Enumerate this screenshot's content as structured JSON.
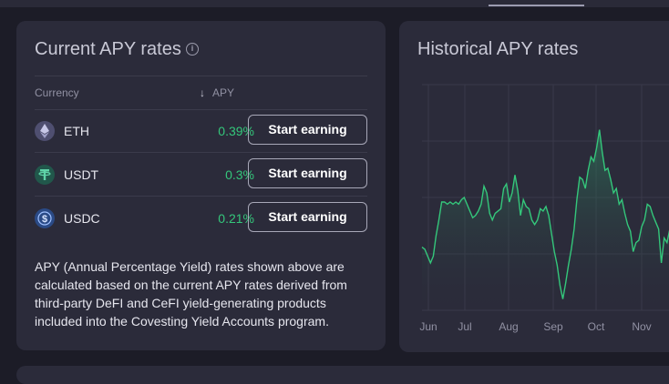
{
  "apy_card": {
    "title": "Current APY rates",
    "columns": {
      "currency": "Currency",
      "apy": "APY"
    },
    "rows": [
      {
        "symbol": "ETH",
        "apy": "0.39%",
        "button": "Start earning",
        "icon": "eth-icon"
      },
      {
        "symbol": "USDT",
        "apy": "0.3%",
        "button": "Start earning",
        "icon": "usdt-icon"
      },
      {
        "symbol": "USDC",
        "apy": "0.21%",
        "button": "Start earning",
        "icon": "usdc-icon"
      }
    ],
    "description": "APY (Annual Percentage Yield) rates shown above are calculated based on the current APY rates derived from third-party DeFI and CeFI yield-generating products included into the Covesting Yield Accounts program.",
    "colors": {
      "apy_green": "#34c77b",
      "card_bg": "#2b2b3a"
    }
  },
  "history_card": {
    "title": "Historical APY rates"
  },
  "chart_data": {
    "type": "area",
    "title": "Historical APY rates",
    "x_ticks": [
      "Jun",
      "Jul",
      "Aug",
      "Sep",
      "Oct",
      "Nov"
    ],
    "grid": true,
    "series": [
      {
        "color": "#34c77b",
        "values": [
          0.28,
          0.27,
          0.24,
          0.21,
          0.24,
          0.33,
          0.4,
          0.48,
          0.48,
          0.47,
          0.48,
          0.47,
          0.48,
          0.47,
          0.49,
          0.5,
          0.47,
          0.44,
          0.41,
          0.42,
          0.44,
          0.47,
          0.55,
          0.52,
          0.43,
          0.4,
          0.43,
          0.44,
          0.45,
          0.54,
          0.56,
          0.48,
          0.52,
          0.6,
          0.53,
          0.42,
          0.49,
          0.46,
          0.45,
          0.4,
          0.38,
          0.4,
          0.45,
          0.44,
          0.46,
          0.42,
          0.34,
          0.26,
          0.2,
          0.11,
          0.05,
          0.12,
          0.2,
          0.27,
          0.36,
          0.49,
          0.59,
          0.58,
          0.54,
          0.62,
          0.68,
          0.66,
          0.72,
          0.8,
          0.7,
          0.62,
          0.63,
          0.58,
          0.52,
          0.54,
          0.47,
          0.49,
          0.43,
          0.38,
          0.35,
          0.26,
          0.3,
          0.31,
          0.37,
          0.4,
          0.47,
          0.46,
          0.42,
          0.39,
          0.36,
          0.21,
          0.32,
          0.3,
          0.36,
          0.34
        ]
      }
    ]
  }
}
